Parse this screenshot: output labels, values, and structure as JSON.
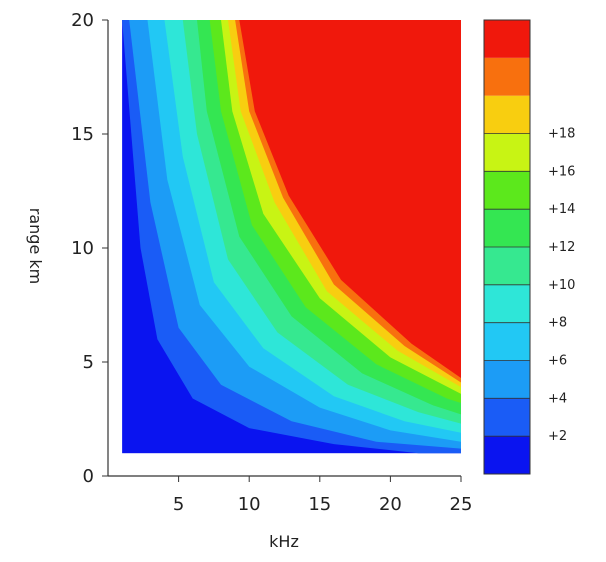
{
  "chart_data": {
    "type": "heatmap",
    "xlabel": "kHz",
    "ylabel": "range km",
    "xlim": [
      0,
      25
    ],
    "ylim": [
      0,
      20
    ],
    "x_ticks": [
      "5",
      "10",
      "15",
      "20",
      "25"
    ],
    "y_ticks": [
      "0",
      "5",
      "10",
      "15",
      "20"
    ],
    "data_x_range": [
      1,
      25
    ],
    "data_y_range": [
      1,
      20
    ],
    "colorbar": {
      "levels": [
        {
          "value": 1,
          "color": "#0a14f0",
          "label": ""
        },
        {
          "value": 2,
          "color": "#1a5cf6",
          "label": "+2"
        },
        {
          "value": 3,
          "color": "#1c9cf6",
          "label": ""
        },
        {
          "value": 4,
          "color": "#22c8f4",
          "label": "+4"
        },
        {
          "value": 5,
          "color": "#2ee6d8",
          "label": ""
        },
        {
          "value": 6,
          "color": "#36e890",
          "label": "+6"
        },
        {
          "value": 7,
          "color": "#34e652",
          "label": ""
        },
        {
          "value": 8,
          "color": "#5ce81c",
          "label": "+8"
        },
        {
          "value": 9,
          "color": "#c8f414",
          "label": ""
        },
        {
          "value": 10,
          "color": "#f8ce10",
          "label": "+10"
        },
        {
          "value": 11,
          "color": "#f8700e",
          "label": ""
        },
        {
          "value": 12,
          "color": "#f0180c",
          "label": "+12"
        }
      ],
      "boundary_labels": [
        "+2",
        "+4",
        "+6",
        "+8",
        "+10",
        "+12",
        "+14",
        "+16",
        "+18"
      ]
    },
    "contour_boundaries": [
      {
        "level": 1,
        "points": [
          [
            1.0,
            20
          ],
          [
            2.3,
            10
          ],
          [
            3.5,
            6
          ],
          [
            6,
            3.4
          ],
          [
            10,
            2.1
          ],
          [
            16,
            1.4
          ],
          [
            22,
            1.0
          ],
          [
            25,
            1.0
          ]
        ]
      },
      {
        "level": 2,
        "points": [
          [
            1.5,
            20
          ],
          [
            3.0,
            12
          ],
          [
            5.0,
            6.5
          ],
          [
            8,
            4.0
          ],
          [
            13,
            2.4
          ],
          [
            19,
            1.5
          ],
          [
            25,
            1.2
          ]
        ]
      },
      {
        "level": 3,
        "points": [
          [
            2.8,
            20
          ],
          [
            4.2,
            13
          ],
          [
            6.5,
            7.5
          ],
          [
            10,
            4.8
          ],
          [
            15,
            3.0
          ],
          [
            20,
            2.0
          ],
          [
            25,
            1.5
          ]
        ]
      },
      {
        "level": 4,
        "points": [
          [
            4.0,
            20
          ],
          [
            5.3,
            14
          ],
          [
            7.5,
            8.5
          ],
          [
            11,
            5.6
          ],
          [
            16,
            3.5
          ],
          [
            21,
            2.4
          ],
          [
            25,
            1.9
          ]
        ]
      },
      {
        "level": 5,
        "points": [
          [
            5.3,
            20
          ],
          [
            6.3,
            15
          ],
          [
            8.5,
            9.5
          ],
          [
            12,
            6.3
          ],
          [
            17,
            4.0
          ],
          [
            22,
            2.8
          ],
          [
            25,
            2.3
          ]
        ]
      },
      {
        "level": 6,
        "points": [
          [
            6.3,
            20
          ],
          [
            7.0,
            16
          ],
          [
            9.3,
            10.5
          ],
          [
            13,
            7.0
          ],
          [
            18,
            4.5
          ],
          [
            23,
            3.1
          ],
          [
            25,
            2.7
          ]
        ]
      },
      {
        "level": 7,
        "points": [
          [
            7.2,
            20
          ],
          [
            8.0,
            16
          ],
          [
            10.2,
            11.0
          ],
          [
            14,
            7.4
          ],
          [
            19,
            4.9
          ],
          [
            24,
            3.4
          ],
          [
            25,
            3.2
          ]
        ]
      },
      {
        "level": 8,
        "points": [
          [
            8.0,
            20
          ],
          [
            8.8,
            16
          ],
          [
            11.0,
            11.5
          ],
          [
            15,
            7.8
          ],
          [
            20,
            5.2
          ],
          [
            25,
            3.6
          ]
        ]
      },
      {
        "level": 9,
        "points": [
          [
            8.5,
            20
          ],
          [
            9.4,
            16
          ],
          [
            11.8,
            12.0
          ],
          [
            15.5,
            8.1
          ],
          [
            20.5,
            5.5
          ],
          [
            25,
            3.9
          ]
        ]
      },
      {
        "level": 10,
        "points": [
          [
            9.0,
            20
          ],
          [
            10.0,
            16
          ],
          [
            12.4,
            12.2
          ],
          [
            16,
            8.4
          ],
          [
            21,
            5.7
          ],
          [
            25,
            4.1
          ]
        ]
      },
      {
        "level": 11,
        "points": [
          [
            9.3,
            20
          ],
          [
            10.4,
            16
          ],
          [
            12.8,
            12.3
          ],
          [
            16.5,
            8.6
          ],
          [
            21.5,
            5.8
          ],
          [
            25,
            4.3
          ]
        ]
      }
    ]
  }
}
